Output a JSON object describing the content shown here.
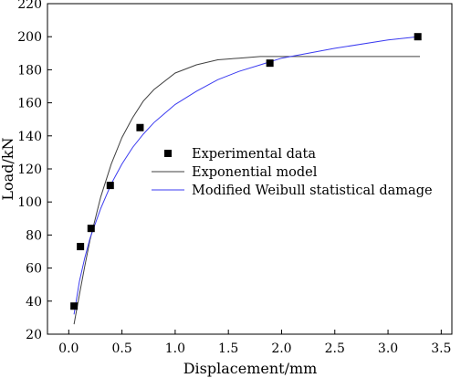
{
  "chart_data": {
    "type": "scatter",
    "xlabel": "Displacement/mm",
    "ylabel": "Load/kN",
    "xlim": [
      -0.2,
      3.6
    ],
    "ylim": [
      20,
      220
    ],
    "xticks": [
      0.0,
      0.5,
      1.0,
      1.5,
      2.0,
      2.5,
      3.0,
      3.5
    ],
    "yticks": [
      20,
      40,
      60,
      80,
      100,
      120,
      140,
      160,
      180,
      200,
      220
    ],
    "xtick_labels": [
      "0.0",
      "0.5",
      "1.0",
      "1.5",
      "2.0",
      "2.5",
      "3.0",
      "3.5"
    ],
    "ytick_labels": [
      "20",
      "40",
      "60",
      "80",
      "100",
      "120",
      "140",
      "160",
      "180",
      "200",
      "220"
    ],
    "legend_position": "center-right",
    "series": [
      {
        "name": "Experimental data",
        "kind": "scatter",
        "marker": "square",
        "color": "#000000",
        "x": [
          0.05,
          0.11,
          0.21,
          0.39,
          0.67,
          1.89,
          3.28
        ],
        "y": [
          37,
          73,
          84,
          110,
          145,
          184,
          200
        ]
      },
      {
        "name": "Exponential model",
        "kind": "line",
        "color": "#404040",
        "x": [
          0.05,
          0.1,
          0.15,
          0.2,
          0.3,
          0.4,
          0.5,
          0.6,
          0.7,
          0.8,
          1.0,
          1.2,
          1.4,
          1.6,
          1.8,
          2.0,
          2.5,
          3.0,
          3.3
        ],
        "y": [
          26,
          44,
          61,
          77,
          103,
          123,
          139,
          151,
          161,
          168,
          178,
          183,
          186,
          187,
          188,
          188,
          188,
          188,
          188
        ]
      },
      {
        "name": "Modified Weibull statistical damage",
        "kind": "line",
        "color": "#3b3bf0",
        "x": [
          0.05,
          0.1,
          0.15,
          0.2,
          0.3,
          0.4,
          0.5,
          0.6,
          0.7,
          0.8,
          1.0,
          1.2,
          1.4,
          1.6,
          1.8,
          2.0,
          2.5,
          3.0,
          3.28
        ],
        "y": [
          32,
          52,
          66,
          78,
          96,
          111,
          123,
          133,
          141,
          148,
          159,
          167,
          174,
          179,
          183,
          187,
          193,
          198,
          200
        ]
      }
    ]
  }
}
